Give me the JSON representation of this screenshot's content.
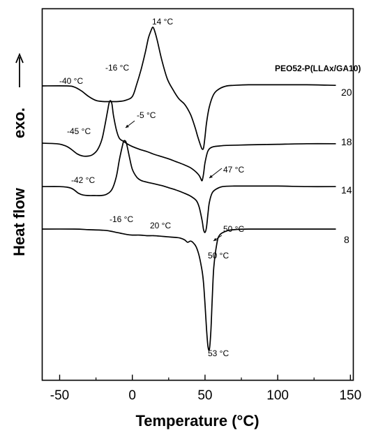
{
  "chart_data": {
    "type": "line",
    "title": "",
    "xlabel": "Temperature (°C)",
    "ylabel": "Heat flow",
    "ylabel_extra": "exo.",
    "xlim": [
      -62,
      152
    ],
    "x_ticks": [
      -50,
      0,
      50,
      100,
      150
    ],
    "x_tick_labels": [
      "-50",
      "0",
      "50",
      "100",
      "150"
    ],
    "y_ticks_shown": false,
    "grid": false,
    "legend_title": "PEO52-P(LLAx/GA10)",
    "series": [
      {
        "name": "20",
        "x": [
          -62,
          -45,
          -40,
          -35,
          -30,
          -25,
          -20,
          -15,
          -10,
          -5,
          0,
          3,
          6,
          9,
          11,
          13,
          14,
          15,
          17,
          20,
          24,
          28,
          32,
          36,
          40,
          43,
          45,
          47,
          48,
          49,
          50,
          51,
          53,
          56,
          60,
          65,
          70,
          80,
          100,
          120,
          140
        ],
        "y": [
          0.5,
          0.5,
          0.3,
          -0.4,
          -1.4,
          -2.1,
          -2.3,
          -2.3,
          -2.3,
          -2.1,
          -1.4,
          0.8,
          3.4,
          6.6,
          9.0,
          10.5,
          11.0,
          10.6,
          8.8,
          5.4,
          1.8,
          -0.2,
          -1.8,
          -2.8,
          -4.6,
          -6.8,
          -8.6,
          -10.2,
          -10.8,
          -10.6,
          -8.6,
          -6.2,
          -3.2,
          -1.0,
          0.0,
          0.5,
          0.6,
          0.7,
          0.7,
          0.7,
          0.6
        ]
      },
      {
        "name": "18",
        "x": [
          -62,
          -52,
          -48,
          -45,
          -42,
          -38,
          -34,
          -30,
          -27,
          -24,
          -21,
          -19,
          -17,
          -16,
          -15,
          -14,
          -13,
          -11,
          -9,
          -6,
          -3,
          0,
          5,
          10,
          15,
          20,
          25,
          30,
          35,
          40,
          44,
          46,
          47,
          48,
          49,
          50,
          52,
          55,
          60,
          65,
          80,
          100,
          120,
          140
        ],
        "y": [
          0.0,
          -0.1,
          -0.3,
          -0.6,
          -1.1,
          -1.9,
          -2.3,
          -2.3,
          -2.0,
          -1.2,
          0.6,
          3.0,
          5.8,
          7.2,
          7.6,
          7.0,
          5.0,
          2.4,
          0.9,
          0.3,
          -0.2,
          -0.6,
          -1.1,
          -1.5,
          -2.0,
          -2.4,
          -2.8,
          -3.3,
          -3.8,
          -4.4,
          -5.2,
          -5.8,
          -6.3,
          -6.7,
          -5.5,
          -3.5,
          -1.4,
          -0.7,
          -0.5,
          -0.4,
          -0.3,
          -0.2,
          -0.1,
          -0.1
        ]
      },
      {
        "name": "14",
        "x": [
          -62,
          -50,
          -45,
          -42,
          -40,
          -37,
          -34,
          -30,
          -26,
          -22,
          -18,
          -14,
          -11,
          -9,
          -7,
          -6,
          -5,
          -4,
          -2,
          0,
          3,
          6,
          10,
          15,
          20,
          25,
          30,
          35,
          40,
          44,
          46,
          48,
          49,
          50,
          51,
          52,
          53,
          55,
          58,
          62,
          70,
          80,
          100,
          120,
          140
        ],
        "y": [
          0.1,
          0.1,
          0.0,
          -0.2,
          -0.5,
          -1.1,
          -1.4,
          -1.5,
          -1.5,
          -1.5,
          -1.3,
          -0.4,
          1.9,
          4.8,
          7.2,
          8.2,
          8.3,
          7.8,
          5.4,
          3.2,
          1.8,
          1.2,
          0.9,
          0.6,
          0.3,
          -0.1,
          -0.5,
          -1.0,
          -1.6,
          -2.4,
          -3.6,
          -6.0,
          -7.6,
          -8.1,
          -7.2,
          -4.8,
          -2.7,
          -1.0,
          -0.3,
          0.1,
          0.2,
          0.2,
          0.2,
          0.1,
          0.1
        ]
      },
      {
        "name": "8",
        "x": [
          -62,
          -40,
          -30,
          -20,
          -16,
          -12,
          -8,
          -4,
          0,
          5,
          10,
          15,
          20,
          25,
          30,
          33,
          36,
          38,
          40,
          42,
          44,
          46,
          48,
          49,
          50,
          51,
          52,
          53,
          54,
          55,
          56,
          58,
          60,
          65,
          70,
          80,
          100,
          120,
          140
        ],
        "y": [
          0.0,
          0.0,
          -0.1,
          -0.2,
          -0.3,
          -0.5,
          -0.7,
          -0.9,
          -1.0,
          -1.0,
          -1.1,
          -1.1,
          -1.2,
          -1.3,
          -1.4,
          -1.5,
          -1.8,
          -2.2,
          -2.0,
          -2.3,
          -3.0,
          -4.5,
          -7.0,
          -9.0,
          -12.5,
          -16.5,
          -19.5,
          -20.0,
          -17.0,
          -11.5,
          -6.5,
          -2.6,
          -1.0,
          -0.3,
          -0.1,
          0.0,
          0.0,
          0.0,
          0.0
        ]
      }
    ],
    "annotations": [
      {
        "text": "14 °C",
        "x": 14,
        "series": "20"
      },
      {
        "text": "-40 °C",
        "x": -40,
        "series": "20"
      },
      {
        "text": "-16 °C",
        "x": -16,
        "series": "18"
      },
      {
        "text": "-45 °C",
        "x": -45,
        "series": "18"
      },
      {
        "text": "-5 °C",
        "x": -5,
        "series": "14"
      },
      {
        "text": "47 °C",
        "x": 47,
        "series": "18"
      },
      {
        "text": "-42 °C",
        "x": -42,
        "series": "14"
      },
      {
        "text": "-16 °C",
        "x": -16,
        "series": "8"
      },
      {
        "text": "20 °C",
        "x": 20,
        "series": "8"
      },
      {
        "text": "50 °C",
        "x": 50,
        "series": "14"
      },
      {
        "text": "50 °C",
        "x": 50,
        "series": "8"
      },
      {
        "text": "53 °C",
        "x": 53,
        "series": "8"
      }
    ]
  }
}
